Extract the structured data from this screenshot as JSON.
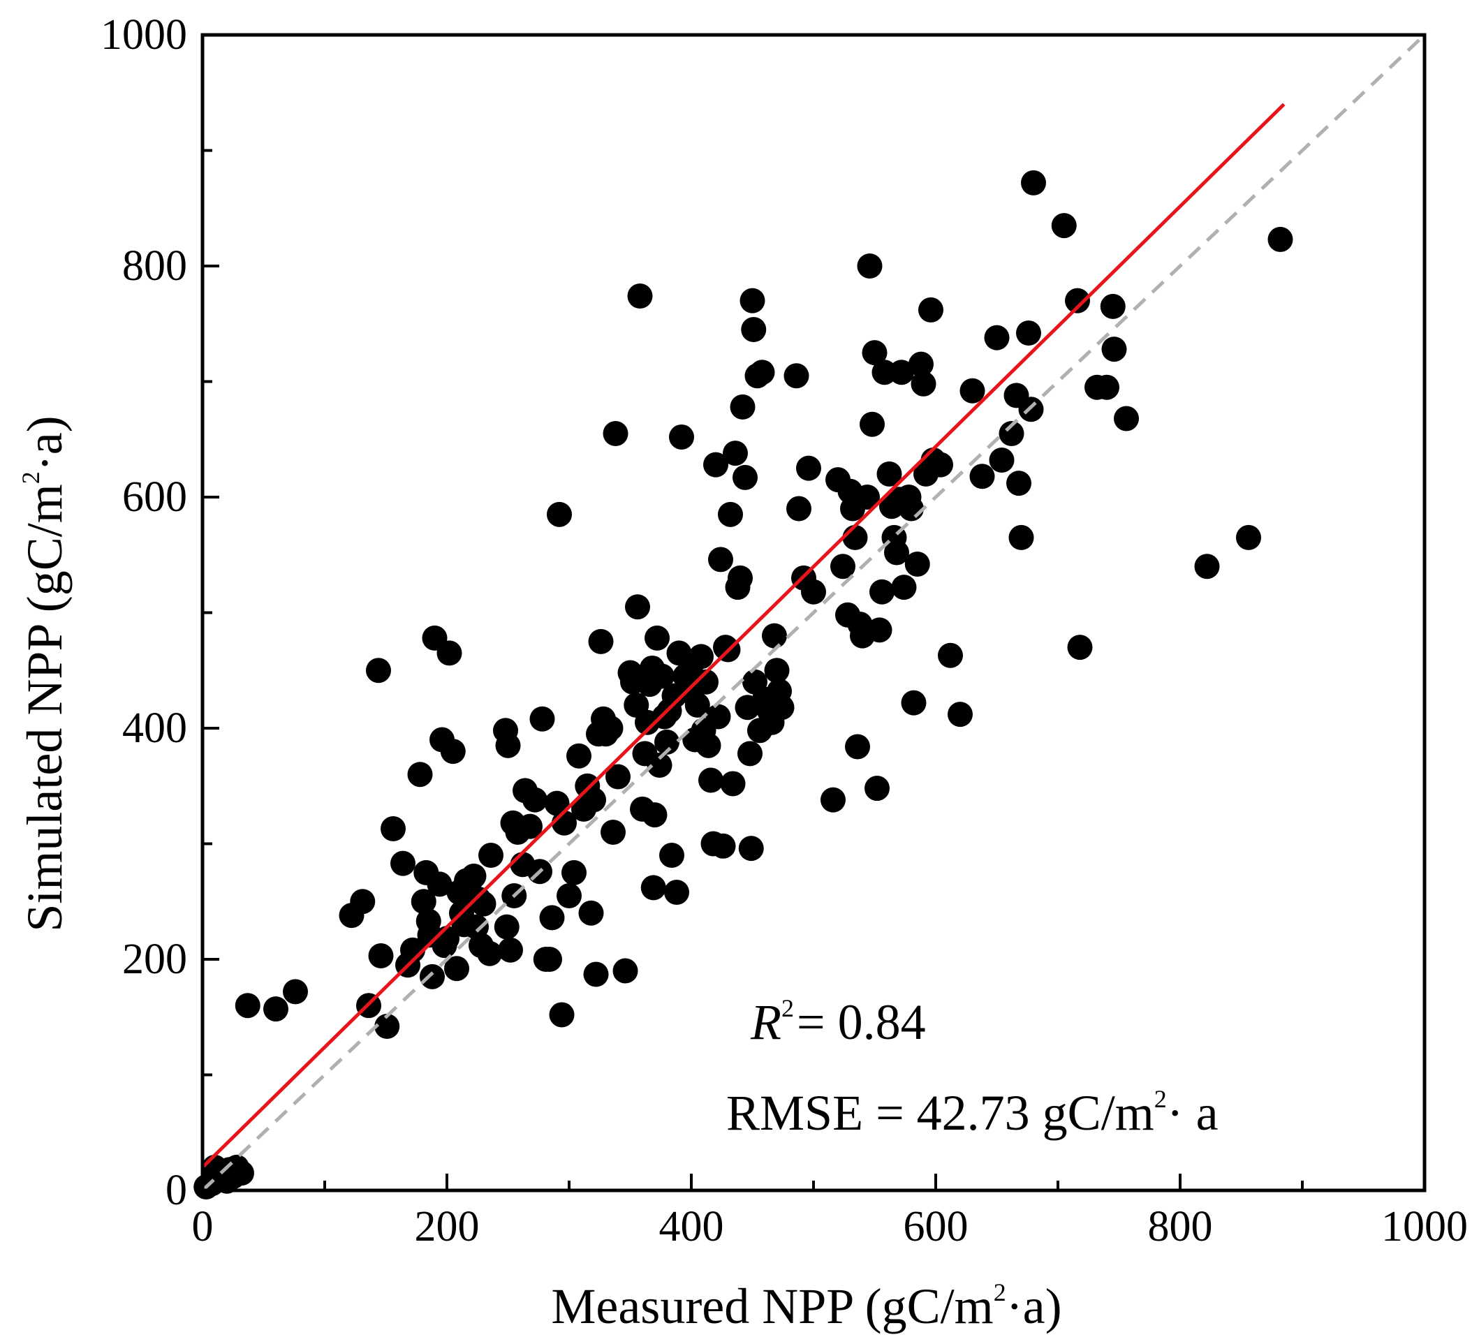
{
  "chart_data": {
    "type": "scatter",
    "xlabel": "Measured NPP (gC/m²·a)",
    "ylabel": "Simulated NPP (gC/m²·a)",
    "xlabel_parts": {
      "pre": "Measured NPP (gC/m",
      "sup": "2",
      "post": "·a)"
    },
    "ylabel_parts": {
      "pre": "Simulated NPP (gC/m",
      "sup": "2",
      "post": "·a)"
    },
    "xlim": [
      0,
      1000
    ],
    "ylim": [
      0,
      1000
    ],
    "xticks": [
      "0",
      "200",
      "400",
      "600",
      "800",
      "1000"
    ],
    "yticks": [
      "0",
      "200",
      "400",
      "600",
      "800",
      "1000"
    ],
    "marker_color": "#000000",
    "fit_line": {
      "color": "#e8141b",
      "x0": 0,
      "y0": 20,
      "x1": 885,
      "y1": 940
    },
    "identity_line": {
      "color": "#b0b0b0",
      "dashed": true,
      "from": [
        0,
        0
      ],
      "to": [
        1000,
        1000
      ]
    },
    "annotations": {
      "r2_symbol": "R",
      "r2_sup": "2",
      "r2_value": "= 0.84",
      "rmse_pre": "RMSE = 42.73 gC/m",
      "rmse_sup": "2",
      "rmse_post": "· a"
    },
    "points": [
      [
        3,
        3
      ],
      [
        8,
        6
      ],
      [
        12,
        10
      ],
      [
        18,
        14
      ],
      [
        22,
        18
      ],
      [
        28,
        20
      ],
      [
        32,
        15
      ],
      [
        10,
        20
      ],
      [
        20,
        8
      ],
      [
        25,
        12
      ],
      [
        37,
        160
      ],
      [
        60,
        157
      ],
      [
        76,
        172
      ],
      [
        122,
        238
      ],
      [
        131,
        250
      ],
      [
        136,
        160
      ],
      [
        144,
        450
      ],
      [
        146,
        203
      ],
      [
        151,
        142
      ],
      [
        156,
        313
      ],
      [
        164,
        283
      ],
      [
        168,
        195
      ],
      [
        172,
        208
      ],
      [
        178,
        360
      ],
      [
        181,
        250
      ],
      [
        183,
        275
      ],
      [
        185,
        233
      ],
      [
        186,
        221
      ],
      [
        188,
        185
      ],
      [
        190,
        478
      ],
      [
        194,
        265
      ],
      [
        196,
        390
      ],
      [
        198,
        212
      ],
      [
        200,
        218
      ],
      [
        202,
        465
      ],
      [
        205,
        380
      ],
      [
        208,
        192
      ],
      [
        210,
        258
      ],
      [
        212,
        240
      ],
      [
        214,
        230
      ],
      [
        216,
        268
      ],
      [
        218,
        262
      ],
      [
        222,
        272
      ],
      [
        224,
        228
      ],
      [
        226,
        252
      ],
      [
        228,
        212
      ],
      [
        230,
        248
      ],
      [
        235,
        205
      ],
      [
        236,
        290
      ],
      [
        248,
        398
      ],
      [
        249,
        228
      ],
      [
        250,
        385
      ],
      [
        252,
        208
      ],
      [
        254,
        318
      ],
      [
        255,
        255
      ],
      [
        258,
        310
      ],
      [
        262,
        282
      ],
      [
        264,
        346
      ],
      [
        268,
        315
      ],
      [
        272,
        338
      ],
      [
        276,
        276
      ],
      [
        278,
        408
      ],
      [
        281,
        200
      ],
      [
        284,
        200
      ],
      [
        286,
        236
      ],
      [
        290,
        335
      ],
      [
        292,
        585
      ],
      [
        294,
        152
      ],
      [
        296,
        318
      ],
      [
        300,
        255
      ],
      [
        304,
        275
      ],
      [
        308,
        376
      ],
      [
        312,
        330
      ],
      [
        315,
        350
      ],
      [
        318,
        240
      ],
      [
        320,
        338
      ],
      [
        322,
        187
      ],
      [
        324,
        395
      ],
      [
        326,
        475
      ],
      [
        328,
        408
      ],
      [
        330,
        395
      ],
      [
        334,
        400
      ],
      [
        336,
        310
      ],
      [
        338,
        655
      ],
      [
        340,
        358
      ],
      [
        346,
        190
      ],
      [
        350,
        448
      ],
      [
        352,
        440
      ],
      [
        355,
        420
      ],
      [
        356,
        505
      ],
      [
        358,
        774
      ],
      [
        360,
        330
      ],
      [
        362,
        378
      ],
      [
        364,
        405
      ],
      [
        366,
        438
      ],
      [
        368,
        452
      ],
      [
        369,
        262
      ],
      [
        370,
        325
      ],
      [
        372,
        478
      ],
      [
        374,
        368
      ],
      [
        376,
        445
      ],
      [
        378,
        410
      ],
      [
        380,
        388
      ],
      [
        382,
        415
      ],
      [
        384,
        290
      ],
      [
        386,
        428
      ],
      [
        388,
        258
      ],
      [
        390,
        465
      ],
      [
        392,
        652
      ],
      [
        395,
        445
      ],
      [
        398,
        432
      ],
      [
        400,
        455
      ],
      [
        403,
        390
      ],
      [
        405,
        420
      ],
      [
        408,
        462
      ],
      [
        410,
        398
      ],
      [
        412,
        440
      ],
      [
        414,
        385
      ],
      [
        416,
        355
      ],
      [
        418,
        300
      ],
      [
        420,
        628
      ],
      [
        422,
        410
      ],
      [
        424,
        546
      ],
      [
        426,
        298
      ],
      [
        428,
        470
      ],
      [
        430,
        468
      ],
      [
        432,
        585
      ],
      [
        434,
        352
      ],
      [
        436,
        638
      ],
      [
        438,
        522
      ],
      [
        440,
        530
      ],
      [
        442,
        678
      ],
      [
        444,
        617
      ],
      [
        446,
        418
      ],
      [
        448,
        378
      ],
      [
        449,
        296
      ],
      [
        450,
        770
      ],
      [
        451,
        745
      ],
      [
        452,
        440
      ],
      [
        454,
        705
      ],
      [
        456,
        398
      ],
      [
        458,
        708
      ],
      [
        460,
        425
      ],
      [
        464,
        415
      ],
      [
        466,
        405
      ],
      [
        468,
        480
      ],
      [
        470,
        450
      ],
      [
        472,
        432
      ],
      [
        474,
        418
      ],
      [
        486,
        705
      ],
      [
        488,
        590
      ],
      [
        492,
        530
      ],
      [
        496,
        625
      ],
      [
        500,
        518
      ],
      [
        516,
        338
      ],
      [
        520,
        615
      ],
      [
        524,
        540
      ],
      [
        528,
        498
      ],
      [
        530,
        605
      ],
      [
        532,
        590
      ],
      [
        534,
        565
      ],
      [
        536,
        384
      ],
      [
        538,
        490
      ],
      [
        540,
        480
      ],
      [
        544,
        600
      ],
      [
        546,
        800
      ],
      [
        548,
        663
      ],
      [
        550,
        725
      ],
      [
        552,
        348
      ],
      [
        554,
        485
      ],
      [
        556,
        518
      ],
      [
        558,
        708
      ],
      [
        562,
        620
      ],
      [
        564,
        592
      ],
      [
        566,
        565
      ],
      [
        568,
        552
      ],
      [
        570,
        598
      ],
      [
        572,
        708
      ],
      [
        574,
        522
      ],
      [
        578,
        600
      ],
      [
        580,
        590
      ],
      [
        582,
        422
      ],
      [
        585,
        542
      ],
      [
        588,
        715
      ],
      [
        590,
        698
      ],
      [
        592,
        620
      ],
      [
        596,
        762
      ],
      [
        598,
        632
      ],
      [
        604,
        628
      ],
      [
        612,
        463
      ],
      [
        620,
        412
      ],
      [
        630,
        692
      ],
      [
        638,
        618
      ],
      [
        650,
        738
      ],
      [
        654,
        632
      ],
      [
        662,
        655
      ],
      [
        666,
        688
      ],
      [
        668,
        612
      ],
      [
        670,
        565
      ],
      [
        676,
        742
      ],
      [
        678,
        676
      ],
      [
        680,
        872
      ],
      [
        705,
        835
      ],
      [
        716,
        770
      ],
      [
        718,
        470
      ],
      [
        732,
        695
      ],
      [
        740,
        695
      ],
      [
        745,
        765
      ],
      [
        746,
        728
      ],
      [
        756,
        668
      ],
      [
        822,
        540
      ],
      [
        856,
        565
      ],
      [
        882,
        823
      ]
    ]
  }
}
